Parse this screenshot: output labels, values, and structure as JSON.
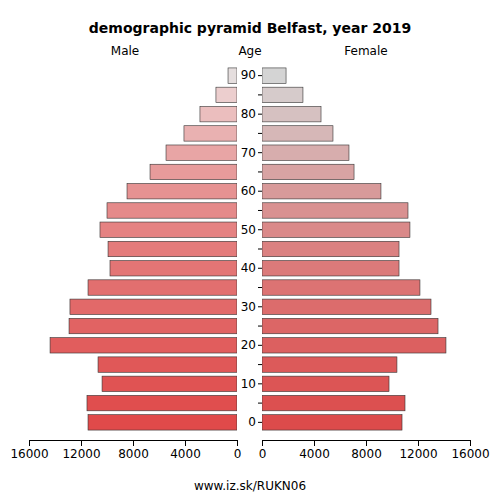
{
  "chart_data": {
    "type": "bar",
    "orientation": "horizontal",
    "title": "demographic pyramid Belfast, year 2019",
    "ylabel": "Age",
    "caption": "www.iz.sk/RUKN06",
    "categories": [
      "0",
      null,
      "10",
      null,
      "20",
      null,
      "30",
      null,
      "40",
      null,
      "50",
      null,
      "60",
      null,
      "70",
      null,
      "80",
      null,
      "90"
    ],
    "series": [
      {
        "name": "Male",
        "values": [
          11460,
          11540,
          10380,
          10690,
          14380,
          12920,
          12850,
          11460,
          9770,
          9920,
          10540,
          10000,
          8460,
          6690,
          5460,
          4080,
          2850,
          1620,
          690
        ],
        "colors": [
          "#e04a4a",
          "#e04e4e",
          "#e05353",
          "#e05858",
          "#e15d5d",
          "#e16363",
          "#e26969",
          "#e26f6f",
          "#e37575",
          "#e47b7b",
          "#e58282",
          "#e58a8a",
          "#e69292",
          "#e79b9b",
          "#e8a5a5",
          "#e9b1b1",
          "#ebbebe",
          "#eccece",
          "#e5dede"
        ]
      },
      {
        "name": "Female",
        "values": [
          10770,
          11000,
          9770,
          10380,
          14150,
          13540,
          13000,
          12150,
          10540,
          10540,
          11380,
          11230,
          9150,
          7080,
          6690,
          5460,
          4540,
          3150,
          1850
        ],
        "colors": [
          "#dc4b4b",
          "#dc5050",
          "#dc5555",
          "#dc5a5a",
          "#dc6060",
          "#dc6666",
          "#dc6c6c",
          "#dc7373",
          "#db7a7a",
          "#db8181",
          "#da8989",
          "#d99191",
          "#d89a9a",
          "#d8a3a3",
          "#d7adad",
          "#d6b7b7",
          "#d6c1c1",
          "#d6cbcb",
          "#d4d4d4"
        ]
      }
    ],
    "xlim": [
      0,
      16000
    ],
    "xticks": [
      0,
      4000,
      8000,
      12000,
      16000
    ]
  }
}
